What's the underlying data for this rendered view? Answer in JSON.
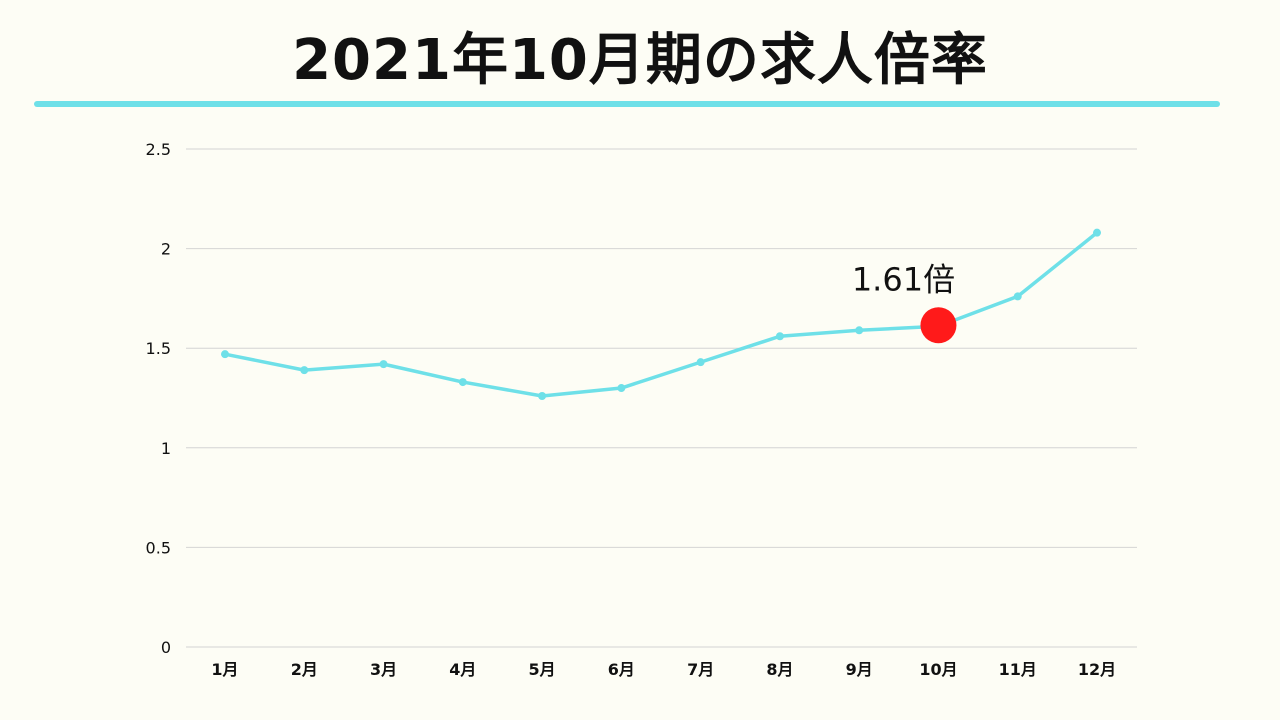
{
  "colors": {
    "background": "#fdfdf5",
    "accent": "#6ee0e8",
    "highlight": "#ff1a1a",
    "grid": "#d4d4d4",
    "text": "#111111"
  },
  "chart_data": {
    "type": "line",
    "title": "2021年10月期の求人倍率",
    "categories": [
      "1月",
      "2月",
      "3月",
      "4月",
      "5月",
      "6月",
      "7月",
      "8月",
      "9月",
      "10月",
      "11月",
      "12月"
    ],
    "series": [
      {
        "name": "求人倍率",
        "values": [
          1.47,
          1.39,
          1.42,
          1.33,
          1.26,
          1.3,
          1.43,
          1.56,
          1.59,
          1.61,
          1.76,
          2.08
        ]
      }
    ],
    "ylim": [
      0,
      2.5
    ],
    "yticks": [
      0,
      0.5,
      1,
      1.5,
      2,
      2.5
    ],
    "ytick_labels": [
      "0",
      "0.5",
      "1",
      "1.5",
      "2",
      "2.5"
    ],
    "grid": true,
    "xlabel": "",
    "ylabel": "",
    "highlight": {
      "index": 9,
      "label": "1.61倍"
    }
  }
}
